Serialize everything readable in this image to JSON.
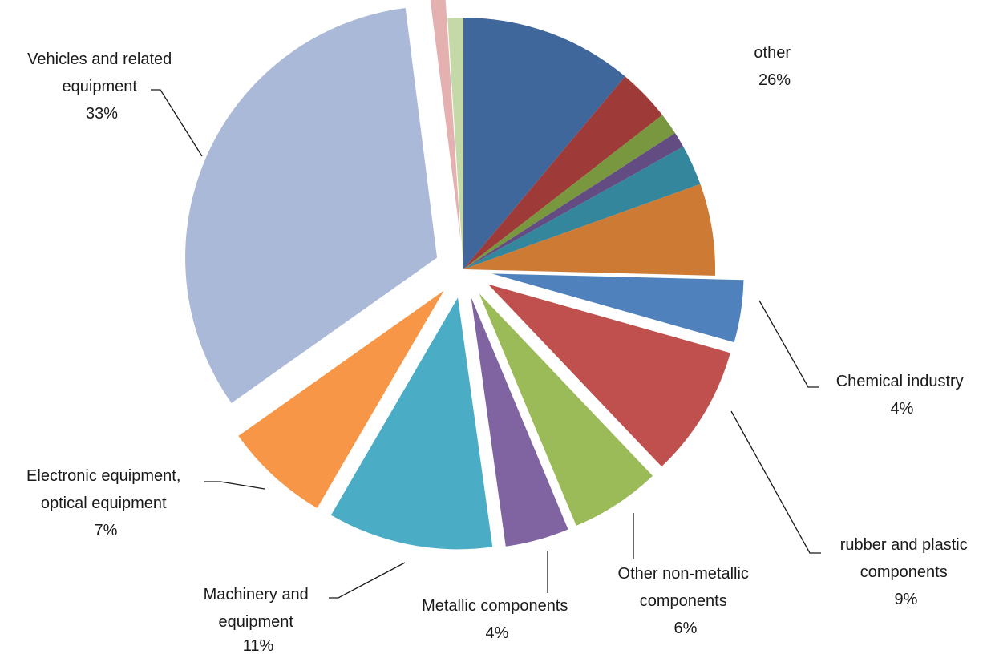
{
  "chart_data": {
    "type": "pie",
    "title": "",
    "slices": [
      {
        "name": "other (dark blue)",
        "value": 11.1,
        "color": "#3f679b",
        "group": "other"
      },
      {
        "name": "other (dark red)",
        "value": 3.4,
        "color": "#9e3b38",
        "group": "other"
      },
      {
        "name": "other (dark green)",
        "value": 1.4,
        "color": "#78973e",
        "group": "other"
      },
      {
        "name": "other (dark purple)",
        "value": 1.0,
        "color": "#624c81",
        "group": "other"
      },
      {
        "name": "other (dark teal)",
        "value": 2.6,
        "color": "#34869d",
        "group": "other"
      },
      {
        "name": "other (dark orange)",
        "value": 5.9,
        "color": "#cd7b34",
        "group": "other"
      },
      {
        "name": "Chemical industry",
        "value": 4.0,
        "color": "#4f81bd",
        "exploded": true
      },
      {
        "name": "rubber and plastic components",
        "value": 8.5,
        "color": "#c0504d",
        "exploded": true
      },
      {
        "name": "Other non-metallic components",
        "value": 5.8,
        "color": "#9bbb59",
        "exploded": true
      },
      {
        "name": "Metallic components",
        "value": 4.1,
        "color": "#8064a2",
        "exploded": true
      },
      {
        "name": "Machinery and equipment",
        "value": 10.6,
        "color": "#4bacc6",
        "exploded": true
      },
      {
        "name": "Electronic equipment, optical equipment",
        "value": 6.8,
        "color": "#f79646",
        "exploded": true
      },
      {
        "name": "Vehicles and related equipment",
        "value": 32.8,
        "color": "#aab9d8",
        "exploded": true
      },
      {
        "name": "other (light red)",
        "value": 1.0,
        "color": "#e5b0b0",
        "exploded": true
      },
      {
        "name": "other (light green)",
        "value": 1.0,
        "color": "#c5d8a8",
        "group": "other"
      }
    ],
    "labels": [
      {
        "lines": [
          "other",
          "26%"
        ]
      },
      {
        "lines": [
          "Vehicles and related",
          "equipment",
          "33%"
        ]
      },
      {
        "lines": [
          "Chemical industry",
          "4%"
        ]
      },
      {
        "lines": [
          "rubber and plastic",
          "components",
          "9%"
        ]
      },
      {
        "lines": [
          "Other non-metallic",
          "components",
          "6%"
        ]
      },
      {
        "lines": [
          "Metallic components",
          "4%"
        ]
      },
      {
        "lines": [
          "Machinery and",
          "equipment",
          "11%"
        ]
      },
      {
        "lines": [
          "Electronic equipment,",
          "optical equipment",
          "7%"
        ]
      }
    ],
    "legend": "none"
  }
}
